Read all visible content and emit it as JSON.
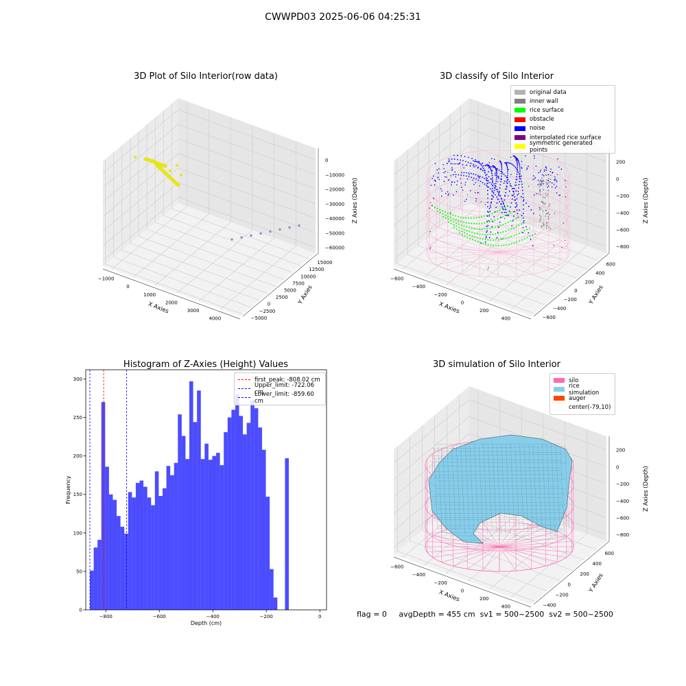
{
  "figure": {
    "suptitle": "CWWPD03 2025-06-06 04:25:31",
    "footer": {
      "flag": "flag = 0",
      "avg_depth": "avgDepth = 455 cm",
      "sv1": "sv1 = 500~2500",
      "sv2": "sv2 = 500~2500"
    }
  },
  "chart_data": [
    {
      "type": "scatter",
      "subtype": "3d",
      "title": "3D Plot of Silo Interior(row data)",
      "xlabel": "X Axies",
      "ylabel": "Y Axies",
      "zlabel": "Z Axies (Depth)",
      "x_ticks": [
        -1000,
        0,
        1000,
        2000,
        3000,
        4000
      ],
      "y_ticks": [
        -5000,
        -2500,
        0,
        2500,
        5000,
        7500,
        10000,
        12500,
        15000
      ],
      "z_ticks": [
        -60000,
        -50000,
        -40000,
        -30000,
        -20000,
        -10000,
        0
      ],
      "grid": true,
      "series": [
        {
          "color": "#e5e51a"
        },
        {
          "color": "#a28fc7"
        }
      ]
    },
    {
      "type": "scatter",
      "subtype": "3d",
      "title": "3D classify of Silo Interior",
      "xlabel": "X Axies",
      "ylabel": "Y Axies",
      "zlabel": "Z Axies (Depth)",
      "x_ticks": [
        -600,
        -400,
        -200,
        0,
        200,
        400
      ],
      "y_ticks": [
        -600,
        -400,
        -200,
        0,
        200,
        400,
        600
      ],
      "z_ticks": [
        -800,
        -600,
        -400,
        -200,
        0,
        200
      ],
      "grid": true,
      "legend_position": "top-right",
      "legend": [
        {
          "name": "original data",
          "color": "#b3b3b3"
        },
        {
          "name": "inner wall",
          "color": "#808080"
        },
        {
          "name": "rice surface",
          "color": "#00ff00"
        },
        {
          "name": "obstacle",
          "color": "#ff0000"
        },
        {
          "name": "noise",
          "color": "#0000ff"
        },
        {
          "name": "interpolated rice surface",
          "color": "#800080"
        },
        {
          "name": "symmetric generated points",
          "color": "#ffff00"
        }
      ],
      "wireframe_color": "#ffb6d9"
    },
    {
      "type": "bar",
      "subtype": "histogram",
      "title": "Histogram of Z-Axies (Height) Values",
      "xlabel": "Depth (cm)",
      "ylabel": "Frequency",
      "xlim": [
        -875,
        25
      ],
      "ylim": [
        0,
        312
      ],
      "x_ticks": [
        -800,
        -600,
        -400,
        -200,
        0
      ],
      "y_ticks": [
        0,
        50,
        100,
        150,
        200,
        250,
        300
      ],
      "bin_width": 14.3,
      "bin_start": -859.6,
      "values": [
        51,
        81,
        91,
        270,
        186,
        150,
        143,
        122,
        108,
        99,
        153,
        146,
        165,
        168,
        160,
        146,
        136,
        180,
        148,
        158,
        187,
        175,
        191,
        254,
        226,
        196,
        297,
        244,
        285,
        196,
        216,
        195,
        200,
        204,
        188,
        231,
        250,
        260,
        280,
        252,
        228,
        243,
        272,
        262,
        237,
        208,
        147,
        53,
        16,
        0,
        0,
        197
      ],
      "color": "#0000ff",
      "opacity": 0.7,
      "legend_position": "top-right",
      "vlines": [
        {
          "label": "first_peak: -808.02 cm",
          "x": -808.02,
          "color": "#ff0000"
        },
        {
          "label": "Upper_limit: -722.06 cm",
          "x": -722.06,
          "color": "#0000ff"
        },
        {
          "label": "Lower_limit: -859.60 cm",
          "x": -859.6,
          "color": "#0000ff"
        }
      ]
    },
    {
      "type": "area",
      "subtype": "3d surface",
      "title": "3D simulation of Silo Interior",
      "xlabel": "X Axies",
      "ylabel": "Y Axies",
      "zlabel": "Z Axies (Depth)",
      "x_ticks": [
        -600,
        -400,
        -200,
        0,
        200,
        400
      ],
      "y_ticks": [
        -400,
        -200,
        0,
        200,
        400,
        600
      ],
      "z_ticks": [
        -800,
        -600,
        -400,
        -200,
        0,
        200
      ],
      "grid": true,
      "legend_position": "top-right",
      "legend": [
        {
          "name": "silo",
          "color": "#ff69b4"
        },
        {
          "name": "rice simulation",
          "color": "#87ceeb"
        },
        {
          "name": "auger",
          "color": "#ff4500"
        },
        {
          "name": "center(-79,10)",
          "color": ""
        }
      ]
    }
  ]
}
